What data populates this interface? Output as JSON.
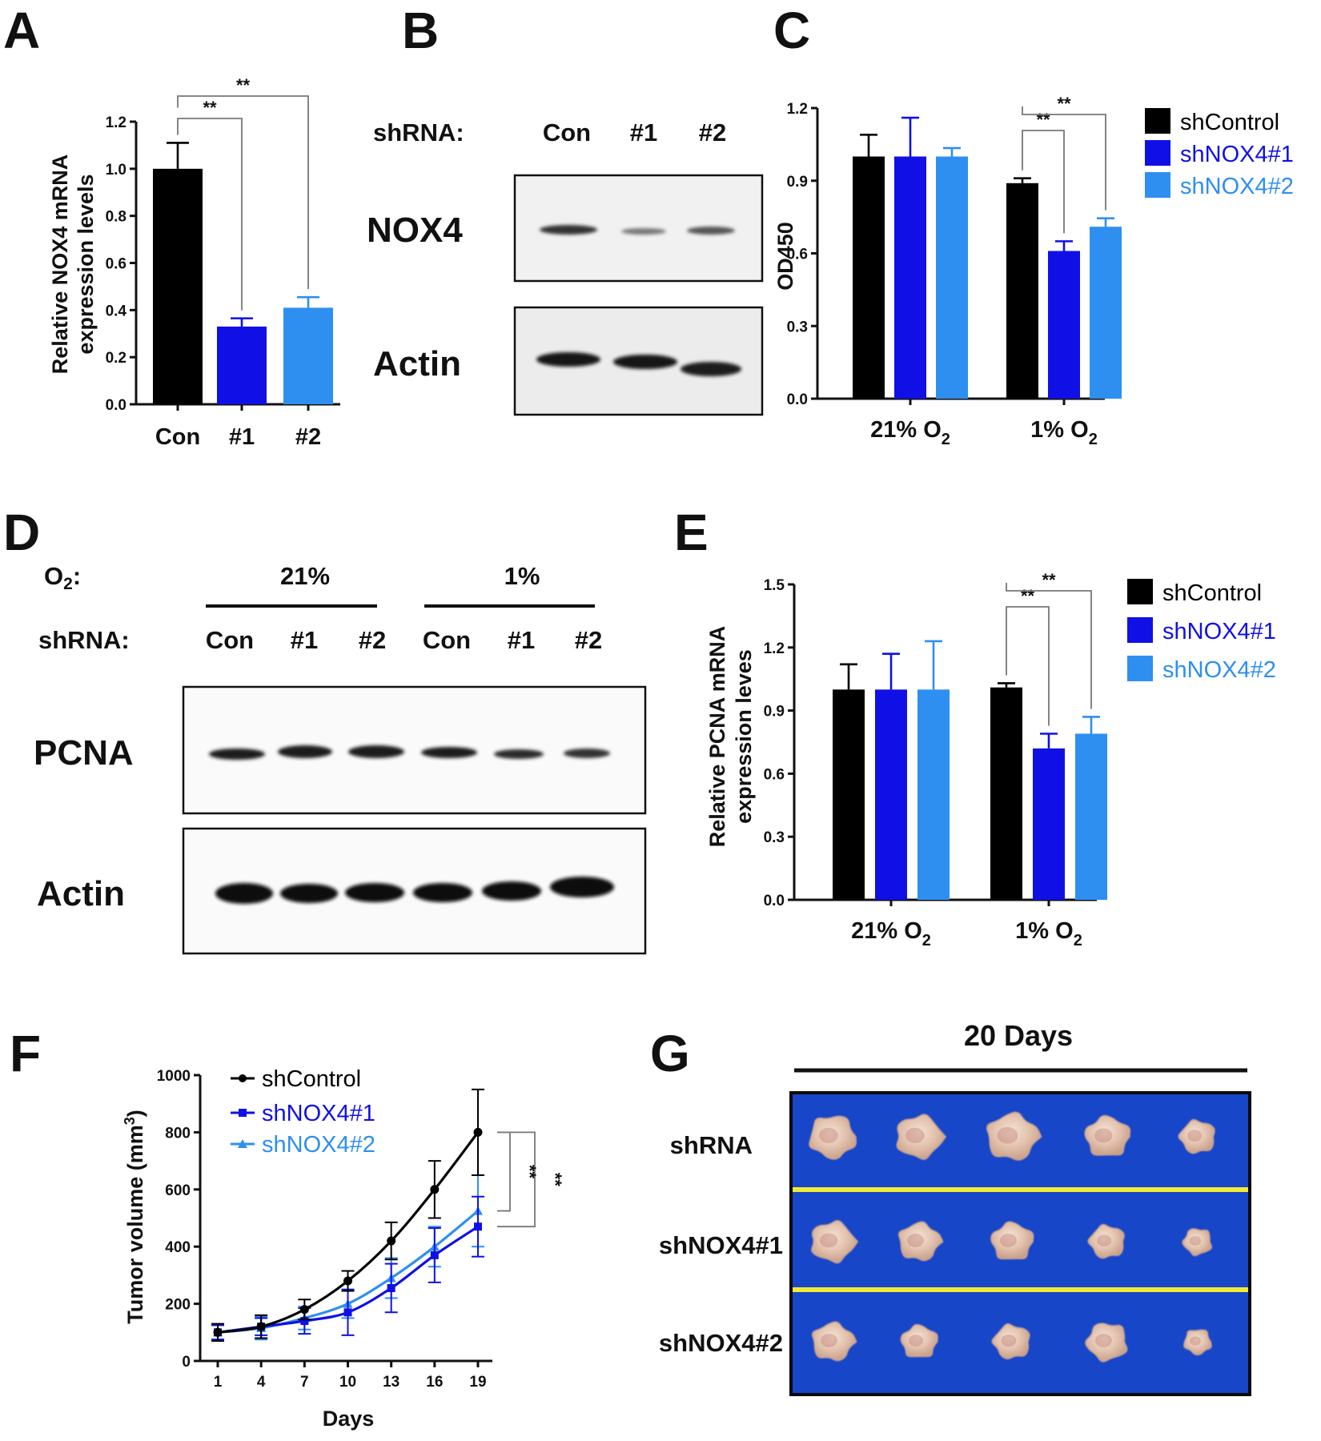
{
  "colors": {
    "shControl": "#000000",
    "shNOX4_1": "#1010e6",
    "shNOX4_2": "#2e8ff0",
    "tray": "#1746c8",
    "divider": "#f2e836"
  },
  "panel_labels": [
    "A",
    "B",
    "C",
    "D",
    "E",
    "F",
    "G"
  ],
  "sig": "**",
  "chart_data": [
    {
      "id": "A",
      "type": "bar",
      "ylabel_lines": [
        "Relative NOX4 mRNA",
        "expression levels"
      ],
      "categories": [
        "Con",
        "#1",
        "#2"
      ],
      "values": [
        1.0,
        0.33,
        0.41
      ],
      "errors": [
        0.11,
        0.035,
        0.045
      ],
      "colors": [
        "#000000",
        "#1010e6",
        "#2e8ff0"
      ],
      "ylim": [
        0,
        1.2
      ],
      "yticks": [
        "0.0",
        "0.2",
        "0.4",
        "0.6",
        "0.8",
        "1.0",
        "1.2"
      ],
      "significance": [
        "**",
        "**"
      ]
    },
    {
      "id": "C",
      "type": "bar",
      "ylabel": "OD450",
      "groups": [
        "21% O",
        "1% O"
      ],
      "group_sub": "2",
      "series": [
        {
          "name": "shControl",
          "values": [
            1.0,
            0.89
          ],
          "errors": [
            0.09,
            0.02
          ]
        },
        {
          "name": "shNOX4#1",
          "values": [
            1.0,
            0.61
          ],
          "errors": [
            0.16,
            0.04
          ]
        },
        {
          "name": "shNOX4#2",
          "values": [
            1.0,
            0.71
          ],
          "errors": [
            0.035,
            0.035
          ]
        }
      ],
      "ylim": [
        0,
        1.2
      ],
      "yticks": [
        "0.0",
        "0.3",
        "0.6",
        "0.9",
        "1.2"
      ],
      "legend": [
        "shControl",
        "shNOX4#1",
        "shNOX4#2"
      ],
      "legend_position": "right",
      "significance": [
        "**",
        "**"
      ]
    },
    {
      "id": "E",
      "type": "bar",
      "ylabel_lines": [
        "Relative PCNA mRNA",
        "expression leves"
      ],
      "groups": [
        "21% O",
        "1% O"
      ],
      "group_sub": "2",
      "series": [
        {
          "name": "shControl",
          "values": [
            1.0,
            1.01
          ],
          "errors": [
            0.12,
            0.02
          ]
        },
        {
          "name": "shNOX4#1",
          "values": [
            1.0,
            0.72
          ],
          "errors": [
            0.17,
            0.07
          ]
        },
        {
          "name": "shNOX4#2",
          "values": [
            1.0,
            0.79
          ],
          "errors": [
            0.23,
            0.08
          ]
        }
      ],
      "ylim": [
        0,
        1.5
      ],
      "yticks": [
        "0.0",
        "0.3",
        "0.6",
        "0.9",
        "1.2",
        "1.5"
      ],
      "legend": [
        "shControl",
        "shNOX4#1",
        "shNOX4#2"
      ],
      "legend_position": "right",
      "significance": [
        "**",
        "**"
      ]
    },
    {
      "id": "F",
      "type": "line",
      "xlabel": "Days",
      "ylabel": "Tumor volume (mm",
      "ylabel_sup": "3",
      "ylabel_end": ")",
      "x": [
        1,
        4,
        7,
        10,
        13,
        16,
        19
      ],
      "xticks": [
        "1",
        "4",
        "7",
        "10",
        "13",
        "16",
        "19"
      ],
      "ylim": [
        0,
        1000
      ],
      "yticks": [
        "0",
        "200",
        "400",
        "600",
        "800",
        "1000"
      ],
      "series": [
        {
          "name": "shControl",
          "marker": "circle",
          "values": [
            100,
            120,
            180,
            280,
            420,
            600,
            800
          ],
          "errors": [
            30,
            40,
            35,
            35,
            65,
            100,
            150
          ]
        },
        {
          "name": "shNOX4#1",
          "marker": "square",
          "values": [
            100,
            120,
            140,
            170,
            255,
            370,
            470
          ],
          "errors": [
            25,
            30,
            45,
            80,
            85,
            95,
            105
          ]
        },
        {
          "name": "shNOX4#2",
          "marker": "triangle",
          "values": [
            100,
            115,
            150,
            200,
            290,
            400,
            525
          ],
          "errors": [
            25,
            40,
            40,
            50,
            70,
            70,
            125
          ]
        }
      ],
      "legend": [
        "shControl",
        "shNOX4#1",
        "shNOX4#2"
      ],
      "legend_position": "top-left",
      "significance": [
        "**",
        "**"
      ]
    }
  ],
  "blotB": {
    "header": "shRNA:",
    "lanes": [
      "Con",
      "#1",
      "#2"
    ],
    "rows": [
      "NOX4",
      "Actin"
    ]
  },
  "blotD": {
    "o2_label": "O",
    "o2_sub": "2",
    "o2_colon": ":",
    "o2_groups": [
      "21%",
      "1%"
    ],
    "shrna_label": "shRNA:",
    "lanes": [
      "Con",
      "#1",
      "#2",
      "Con",
      "#1",
      "#2"
    ],
    "rows": [
      "PCNA",
      "Actin"
    ]
  },
  "photoG": {
    "title": "20 Days",
    "rows": [
      "shRNA",
      "shNOX4#1",
      "shNOX4#2"
    ]
  }
}
